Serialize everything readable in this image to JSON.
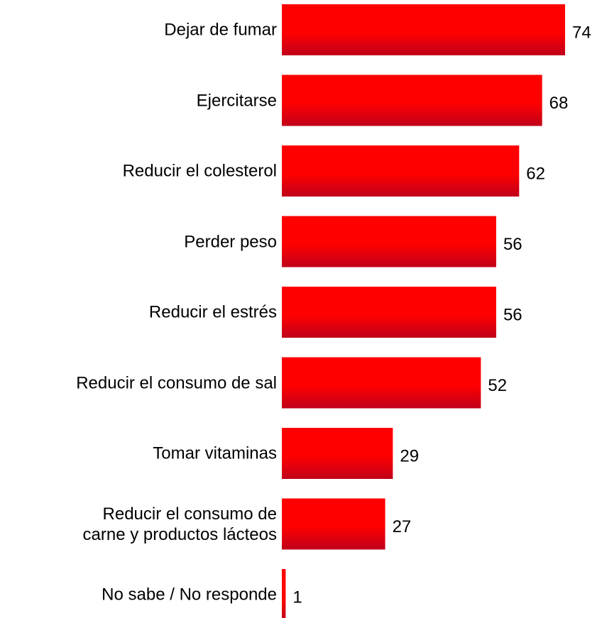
{
  "chart_data": {
    "type": "bar",
    "orientation": "horizontal",
    "categories": [
      "Dejar de fumar",
      "Ejercitarse",
      "Reducir el colesterol",
      "Perder peso",
      "Reducir el estrés",
      "Reducir el consumo de sal",
      "Tomar vitaminas",
      "Reducir el consumo de\ncarne y productos lácteos",
      "No sabe / No responde"
    ],
    "values": [
      74,
      68,
      62,
      56,
      56,
      52,
      29,
      27,
      1
    ],
    "color": "#ff0000"
  }
}
